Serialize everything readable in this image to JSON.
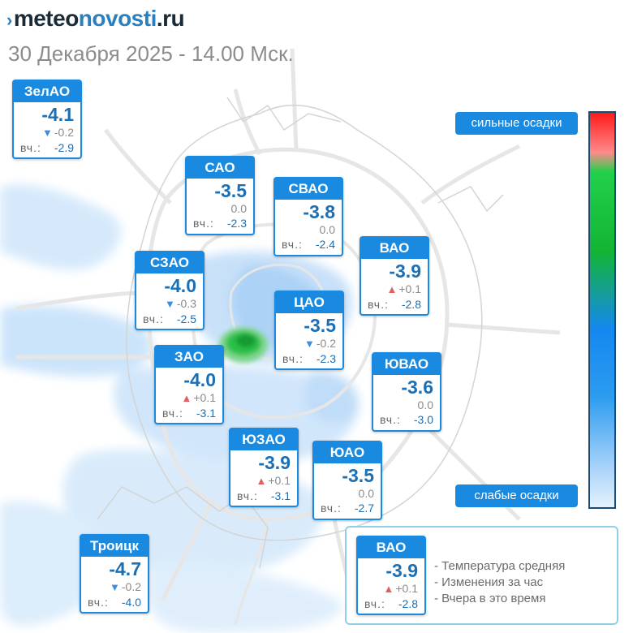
{
  "header": {
    "logo_mark": "›",
    "logo_part1": "meteo",
    "logo_part2": "novosti",
    "logo_part3": ".ru",
    "subtitle": "30 Декабря 2025 - 14.00 Мск."
  },
  "scale": {
    "top_label": "сильные осадки",
    "bottom_label": "слабые осадки",
    "colors": [
      "#ff1a1a",
      "#22d04a",
      "#1488f0",
      "#e4f1fd"
    ]
  },
  "districts": {
    "zelao": {
      "name": "ЗелАО",
      "temp": "-4.1",
      "change": "-0.2",
      "trend": "down",
      "yesterday_label": "вч.:",
      "yesterday": "-2.9"
    },
    "sao": {
      "name": "САО",
      "temp": "-3.5",
      "change": "0.0",
      "trend": "none",
      "yesterday_label": "вч.:",
      "yesterday": "-2.3"
    },
    "svao": {
      "name": "СВАО",
      "temp": "-3.8",
      "change": "0.0",
      "trend": "none",
      "yesterday_label": "вч.:",
      "yesterday": "-2.4"
    },
    "szao": {
      "name": "СЗАО",
      "temp": "-4.0",
      "change": "-0.3",
      "trend": "down",
      "yesterday_label": "вч.:",
      "yesterday": "-2.5"
    },
    "vao": {
      "name": "ВАО",
      "temp": "-3.9",
      "change": "+0.1",
      "trend": "up",
      "yesterday_label": "вч.:",
      "yesterday": "-2.8"
    },
    "cao": {
      "name": "ЦАО",
      "temp": "-3.5",
      "change": "-0.2",
      "trend": "down",
      "yesterday_label": "вч.:",
      "yesterday": "-2.3"
    },
    "zao": {
      "name": "ЗАО",
      "temp": "-4.0",
      "change": "+0.1",
      "trend": "up",
      "yesterday_label": "вч.:",
      "yesterday": "-3.1"
    },
    "yuvao": {
      "name": "ЮВАО",
      "temp": "-3.6",
      "change": "0.0",
      "trend": "none",
      "yesterday_label": "вч.:",
      "yesterday": "-3.0"
    },
    "yuzao": {
      "name": "ЮЗАО",
      "temp": "-3.9",
      "change": "+0.1",
      "trend": "up",
      "yesterday_label": "вч.:",
      "yesterday": "-3.1"
    },
    "yuao": {
      "name": "ЮАО",
      "temp": "-3.5",
      "change": "0.0",
      "trend": "none",
      "yesterday_label": "вч.:",
      "yesterday": "-2.7"
    },
    "troick": {
      "name": "Троицк",
      "temp": "-4.7",
      "change": "-0.2",
      "trend": "down",
      "yesterday_label": "вч.:",
      "yesterday": "-4.0"
    }
  },
  "legend": {
    "sample": {
      "name": "ВАО",
      "temp": "-3.9",
      "change": "+0.1",
      "trend": "up",
      "yesterday_label": "вч.:",
      "yesterday": "-2.8"
    },
    "line1": "- Температура средняя",
    "line2": "- Изменения за час",
    "line3": "- Вчера в это время"
  },
  "icons": {
    "down_arrow": "▼",
    "up_arrow": "▲"
  }
}
